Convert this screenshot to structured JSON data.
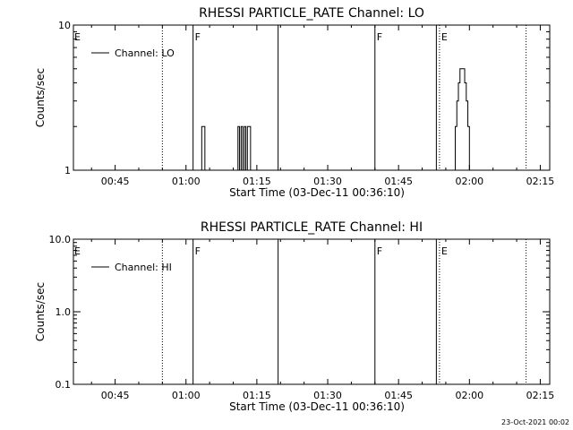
{
  "footer_text": "23-Oct-2021 00:02",
  "chart_data": [
    {
      "type": "line",
      "title": "RHESSI PARTICLE_RATE Channel: LO",
      "xlabel": "Start Time (03-Dec-11 00:36:10)",
      "ylabel": "Counts/sec",
      "y_scale": "log",
      "ylim": [
        1,
        10
      ],
      "y_ticks": [
        {
          "value": 1,
          "label": "1"
        },
        {
          "value": 10,
          "label": "10"
        }
      ],
      "xlim": [
        "00:36:10",
        "02:17:00"
      ],
      "x_ticks": [
        "00:45",
        "01:00",
        "01:15",
        "01:30",
        "01:45",
        "02:00",
        "02:15"
      ],
      "legend": {
        "placement": "top-left",
        "entries": [
          "Channel: LO"
        ]
      },
      "grid": false,
      "series": [
        {
          "name": "Channel: LO",
          "x": [
            "01:02:40",
            "01:03:00",
            "01:03:20",
            "01:03:40",
            "01:04:00",
            "01:04:20",
            "01:10:40",
            "01:11:00",
            "01:11:20",
            "01:11:40",
            "01:12:00",
            "01:12:20",
            "01:12:40",
            "01:13:00",
            "01:13:20",
            "01:13:40",
            "01:14:00",
            "01:56:20",
            "01:56:40",
            "01:57:00",
            "01:57:20",
            "01:57:40",
            "01:58:00",
            "01:58:20",
            "01:58:40",
            "01:59:00",
            "01:59:20",
            "01:59:40",
            "02:00:00",
            "02:00:20",
            "02:00:40"
          ],
          "y": [
            1,
            1,
            2,
            2,
            1,
            1,
            1,
            2,
            1,
            2,
            1,
            2,
            1,
            2,
            2,
            1,
            1,
            1,
            1,
            2,
            3,
            4,
            5,
            5,
            5,
            4,
            3,
            2,
            1,
            1,
            1
          ]
        }
      ],
      "annotations": [
        {
          "type": "vline",
          "x": "00:55:00",
          "style": "dotted"
        },
        {
          "type": "vline",
          "x": "01:01:30",
          "style": "solid",
          "label": "F"
        },
        {
          "type": "vline",
          "x": "01:19:30",
          "style": "solid"
        },
        {
          "type": "vline",
          "x": "01:40:00",
          "style": "solid",
          "label": "F"
        },
        {
          "type": "vline",
          "x": "01:53:00",
          "style": "solid"
        },
        {
          "type": "vline",
          "x": "01:53:40",
          "style": "dotted",
          "label": "E"
        },
        {
          "type": "vline",
          "x": "02:12:00",
          "style": "dotted"
        },
        {
          "type": "text",
          "x": "00:36:10",
          "label": "E"
        }
      ]
    },
    {
      "type": "line",
      "title": "RHESSI PARTICLE_RATE Channel: HI",
      "xlabel": "Start Time (03-Dec-11 00:36:10)",
      "ylabel": "Counts/sec",
      "y_scale": "log",
      "ylim": [
        0.1,
        10
      ],
      "y_ticks": [
        {
          "value": 0.1,
          "label": "0.1"
        },
        {
          "value": 1,
          "label": "1.0"
        },
        {
          "value": 10,
          "label": "10.0"
        }
      ],
      "xlim": [
        "00:36:10",
        "02:17:00"
      ],
      "x_ticks": [
        "00:45",
        "01:00",
        "01:15",
        "01:30",
        "01:45",
        "02:00",
        "02:15"
      ],
      "legend": {
        "placement": "top-left",
        "entries": [
          "Channel: HI"
        ]
      },
      "grid": false,
      "series": [
        {
          "name": "Channel: HI",
          "x": [],
          "y": []
        }
      ],
      "annotations": [
        {
          "type": "vline",
          "x": "00:55:00",
          "style": "dotted"
        },
        {
          "type": "vline",
          "x": "01:01:30",
          "style": "solid",
          "label": "F"
        },
        {
          "type": "vline",
          "x": "01:19:30",
          "style": "solid"
        },
        {
          "type": "vline",
          "x": "01:40:00",
          "style": "solid",
          "label": "F"
        },
        {
          "type": "vline",
          "x": "01:53:00",
          "style": "solid"
        },
        {
          "type": "vline",
          "x": "01:53:40",
          "style": "dotted",
          "label": "E"
        },
        {
          "type": "vline",
          "x": "02:12:00",
          "style": "dotted"
        },
        {
          "type": "text",
          "x": "00:36:10",
          "label": "E"
        }
      ]
    }
  ]
}
